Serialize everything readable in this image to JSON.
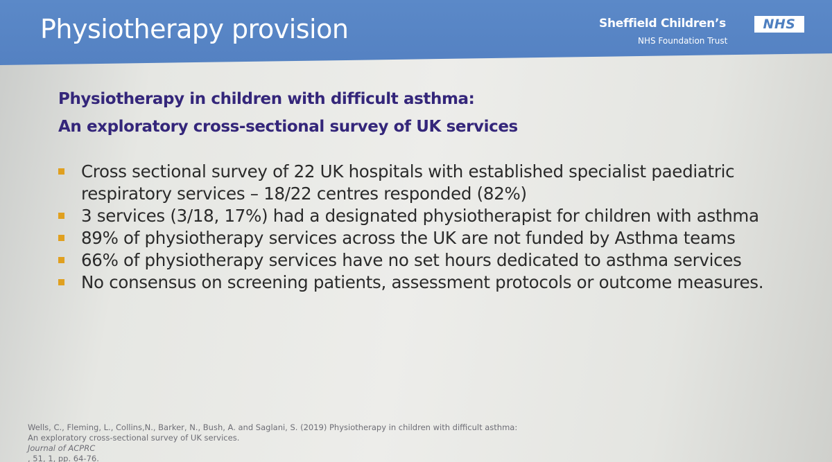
{
  "header": {
    "title": "Physiotherapy provision",
    "logo": {
      "name": "Sheffield Children’s",
      "badge": "NHS",
      "trust": "NHS Foundation Trust"
    }
  },
  "study_title": {
    "line1": "Physiotherapy in children with difficult asthma:",
    "line2": "An exploratory cross-sectional survey of UK services"
  },
  "bullets": [
    "Cross sectional survey of 22 UK hospitals with established specialist paediatric respiratory services – 18/22 centres responded (82%)",
    "3 services (3/18, 17%) had a designated physiotherapist for children with asthma",
    "89% of physiotherapy services across the UK are not funded by Asthma teams",
    "66% of physiotherapy services have no set hours dedicated to asthma services",
    "No consensus on screening patients, assessment protocols or outcome measures."
  ],
  "reference": {
    "line1": "Wells, C., Fleming, L., Collins,N., Barker, N., Bush, A. and Saglani, S. (2019) Physiotherapy in children with difficult asthma:",
    "line2_prefix": "An exploratory cross-sectional survey of UK services. ",
    "journal": "Journal of ACPRC",
    "line2_suffix": ", 51, 1, pp. 64-76."
  },
  "colors": {
    "header_band": "#5481c2",
    "study_title": "#34267a",
    "bullet_marker": "#e0a020",
    "body_text": "#2a2a2a",
    "reference_text": "#6d6d75"
  }
}
